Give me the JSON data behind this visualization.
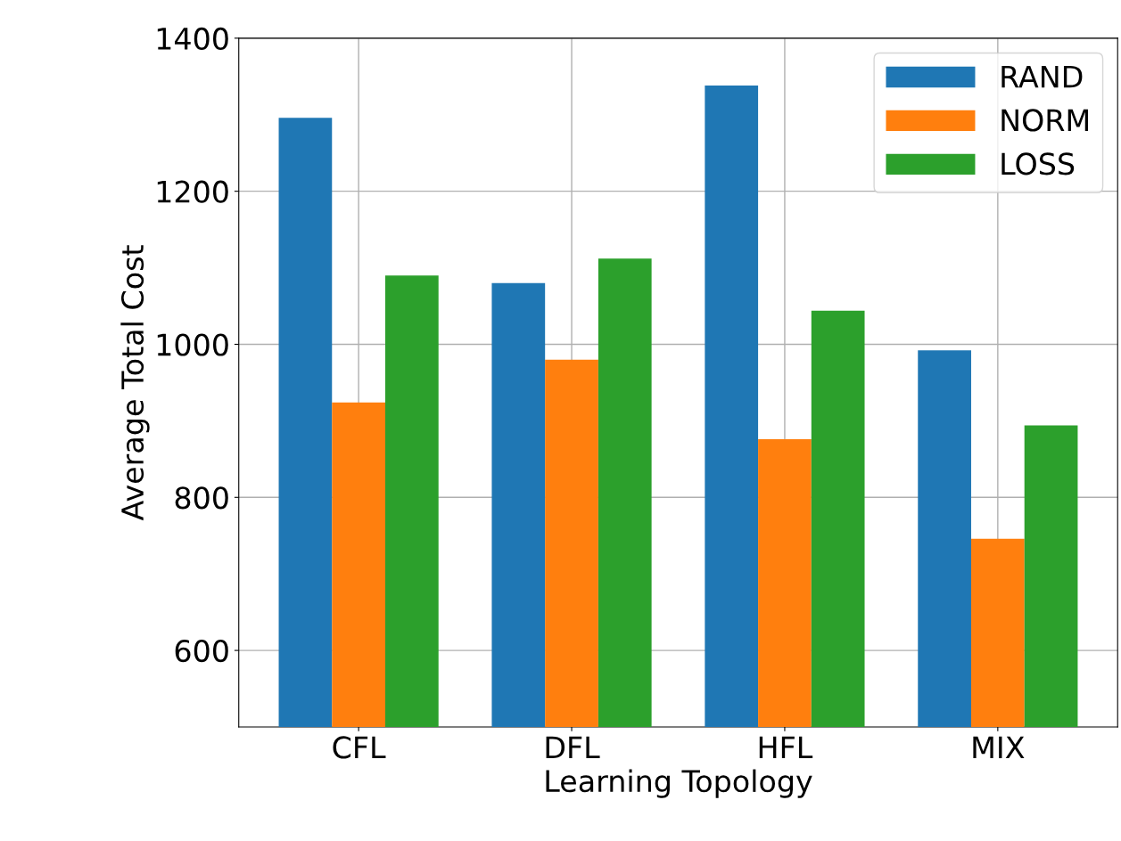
{
  "chart_data": {
    "type": "bar",
    "xlabel": "Learning Topology",
    "ylabel": "Average Total Cost",
    "categories": [
      "CFL",
      "DFL",
      "HFL",
      "MIX"
    ],
    "series": [
      {
        "name": "RAND",
        "color": "#1f77b4",
        "values": [
          1296,
          1080,
          1338,
          992
        ]
      },
      {
        "name": "NORM",
        "color": "#ff7f0e",
        "values": [
          924,
          980,
          876,
          746
        ]
      },
      {
        "name": "LOSS",
        "color": "#2ca02c",
        "values": [
          1090,
          1112,
          1044,
          894
        ]
      }
    ],
    "ylim": [
      500,
      1400
    ],
    "yticks": [
      600,
      800,
      1000,
      1200,
      1400
    ],
    "grid": true,
    "legend": "top right"
  }
}
